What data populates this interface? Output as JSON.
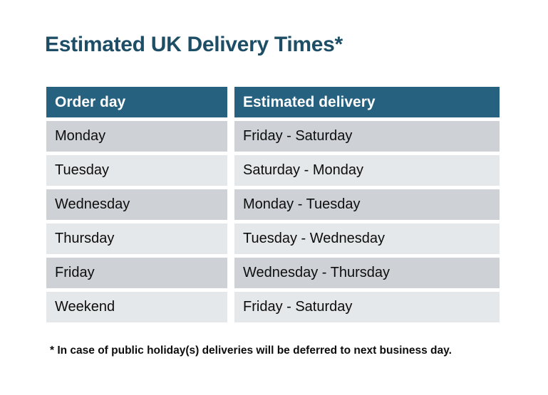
{
  "page": {
    "title": "Estimated UK Delivery Times*",
    "footnote": "* In case of public holiday(s) deliveries will be deferred to next business day."
  },
  "table": {
    "columns": [
      "Order day",
      "Estimated delivery"
    ],
    "rows": [
      {
        "order_day": "Monday",
        "estimated_delivery": "Friday - Saturday"
      },
      {
        "order_day": "Tuesday",
        "estimated_delivery": "Saturday - Monday"
      },
      {
        "order_day": "Wednesday",
        "estimated_delivery": "Monday - Tuesday"
      },
      {
        "order_day": "Thursday",
        "estimated_delivery": "Tuesday - Wednesday"
      },
      {
        "order_day": "Friday",
        "estimated_delivery": "Wednesday - Thursday"
      },
      {
        "order_day": "Weekend",
        "estimated_delivery": "Friday - Saturday"
      }
    ]
  },
  "colors": {
    "title_text": "#1E4E66",
    "header_bg": "#26617F",
    "header_text": "#FFFFFF",
    "row_odd_bg": "#CED2D6",
    "row_even_bg": "#E5E8EA",
    "body_text": "#0D0D0D"
  }
}
